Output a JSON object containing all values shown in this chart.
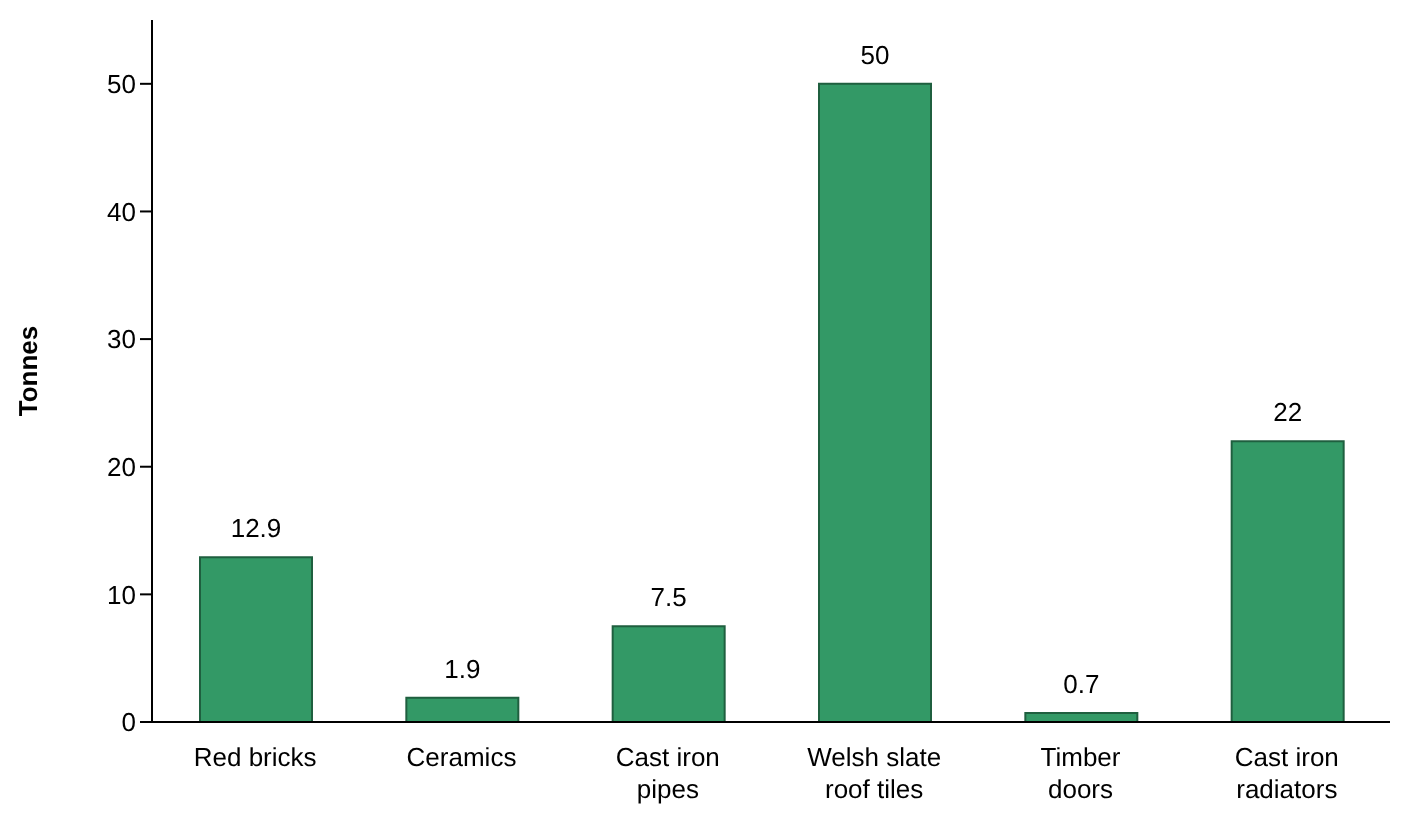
{
  "chart_data": {
    "type": "bar",
    "ylabel": "Tonnes",
    "categories": [
      "Red bricks",
      "Ceramics",
      "Cast iron pipes",
      "Welsh slate roof tiles",
      "Timber doors",
      "Cast iron radiators"
    ],
    "values": [
      12.9,
      1.9,
      7.5,
      50,
      0.7,
      22
    ],
    "color": "#339966",
    "ylim": [
      0,
      55
    ],
    "yticks": [
      0,
      10,
      20,
      30,
      40,
      50
    ],
    "data_labels": true,
    "grid": false,
    "legend": false
  }
}
